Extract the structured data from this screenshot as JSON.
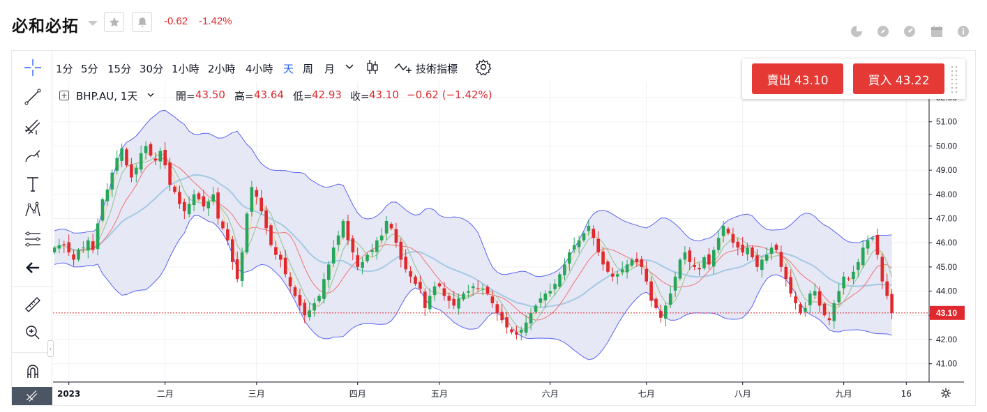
{
  "header": {
    "title": "必和必拓",
    "change_abs": "-0.62",
    "change_pct": "-1.42%",
    "buttons": [
      "star-icon",
      "bell-icon"
    ],
    "right_icons": [
      "pie-chart-icon",
      "compass-icon",
      "gauge-icon",
      "calendar-icon",
      "info-icon"
    ]
  },
  "toolbar": {
    "timeframes": [
      "1分",
      "5分",
      "15分",
      "30分",
      "1小時",
      "2小時",
      "4小時",
      "天",
      "周",
      "月"
    ],
    "active_timeframe": "天",
    "indicators_label": "技術指標"
  },
  "trade": {
    "sell_label": "賣出 43.10",
    "buy_label": "買入 43.22"
  },
  "legend": {
    "symbol": "BHP.AU, 1天",
    "open_label": "開=",
    "open": "43.50",
    "high_label": "高=",
    "high": "43.64",
    "low_label": "低=",
    "low": "42.93",
    "close_label": "收=",
    "close": "43.10",
    "change": "−0.62 (−1.42%)"
  },
  "colors": {
    "up": "#26a65b",
    "down": "#e0292e",
    "band_fill": "#e3e4f3",
    "band_line": "#5b63f0",
    "accent": "#2962ff",
    "last_price_bg": "#e0292e"
  },
  "chart_data": {
    "type": "candlestick",
    "symbol": "BHP.AU",
    "interval": "1天",
    "last_price": 43.1,
    "last_price_label": "43.10",
    "ylim": [
      40.6,
      52.3
    ],
    "y_ticks": [
      52,
      51,
      50,
      49,
      48,
      47,
      46,
      45,
      44,
      43,
      42,
      41
    ],
    "y_tick_labels": [
      "52.00",
      "51.00",
      "50.00",
      "49.00",
      "48.00",
      "47.00",
      "46.00",
      "45.00",
      "44.00",
      "43.00",
      "42.00",
      "41.00"
    ],
    "x_ticks": [
      "2023",
      "二月",
      "三月",
      "四月",
      "五月",
      "六月",
      "七月",
      "八月",
      "九月",
      "16"
    ],
    "x_tick_index": [
      3,
      23,
      42,
      63,
      80,
      103,
      123,
      143,
      164,
      177
    ],
    "grid": true,
    "indicators": [
      "Bollinger Bands",
      "MA short",
      "MA mid",
      "MA long"
    ],
    "close": [
      45.8,
      45.9,
      45.9,
      45.6,
      45.3,
      45.7,
      45.8,
      46.1,
      45.7,
      46.8,
      47.8,
      48.2,
      48.9,
      49.5,
      49.9,
      49.2,
      48.7,
      49.1,
      49.7,
      50.0,
      49.6,
      49.4,
      49.8,
      49.2,
      48.4,
      48.1,
      47.6,
      47.3,
      47.6,
      48.0,
      47.8,
      47.5,
      47.7,
      48.0,
      47.0,
      46.6,
      46.1,
      45.2,
      44.5,
      45.6,
      47.2,
      48.3,
      47.9,
      47.3,
      46.6,
      45.9,
      45.5,
      45.3,
      44.7,
      44.2,
      43.8,
      43.4,
      43.0,
      43.2,
      43.5,
      43.8,
      44.5,
      45.1,
      45.8,
      46.3,
      46.9,
      46.1,
      45.6,
      45.0,
      45.2,
      45.5,
      45.7,
      46.1,
      46.3,
      46.9,
      46.6,
      46.0,
      45.3,
      44.9,
      44.6,
      44.3,
      44.1,
      43.3,
      43.8,
      44.2,
      44.2,
      43.8,
      43.6,
      43.4,
      43.7,
      43.9,
      44.0,
      44.2,
      44.1,
      44.1,
      43.9,
      43.5,
      43.1,
      42.8,
      42.5,
      42.3,
      42.2,
      42.4,
      42.7,
      43.1,
      43.4,
      43.7,
      43.9,
      44.0,
      44.3,
      44.7,
      45.1,
      45.6,
      45.9,
      46.1,
      46.4,
      46.7,
      46.2,
      45.6,
      45.1,
      44.8,
      44.6,
      44.7,
      44.9,
      45.1,
      45.3,
      45.2,
      45.0,
      44.4,
      43.6,
      43.3,
      42.9,
      43.4,
      43.9,
      44.6,
      45.3,
      45.6,
      45.2,
      45.0,
      44.9,
      45.4,
      45.1,
      45.7,
      46.2,
      46.7,
      46.4,
      46.0,
      45.8,
      45.6,
      45.8,
      45.4,
      45.0,
      45.3,
      45.5,
      45.8,
      45.7,
      45.0,
      44.5,
      43.9,
      43.5,
      43.1,
      43.3,
      43.9,
      44.0,
      43.4,
      43.0,
      42.8,
      43.5,
      44.0,
      44.6,
      44.5,
      44.8,
      45.2,
      45.8,
      46.1,
      46.2,
      45.5,
      44.4,
      43.8,
      43.1
    ]
  }
}
